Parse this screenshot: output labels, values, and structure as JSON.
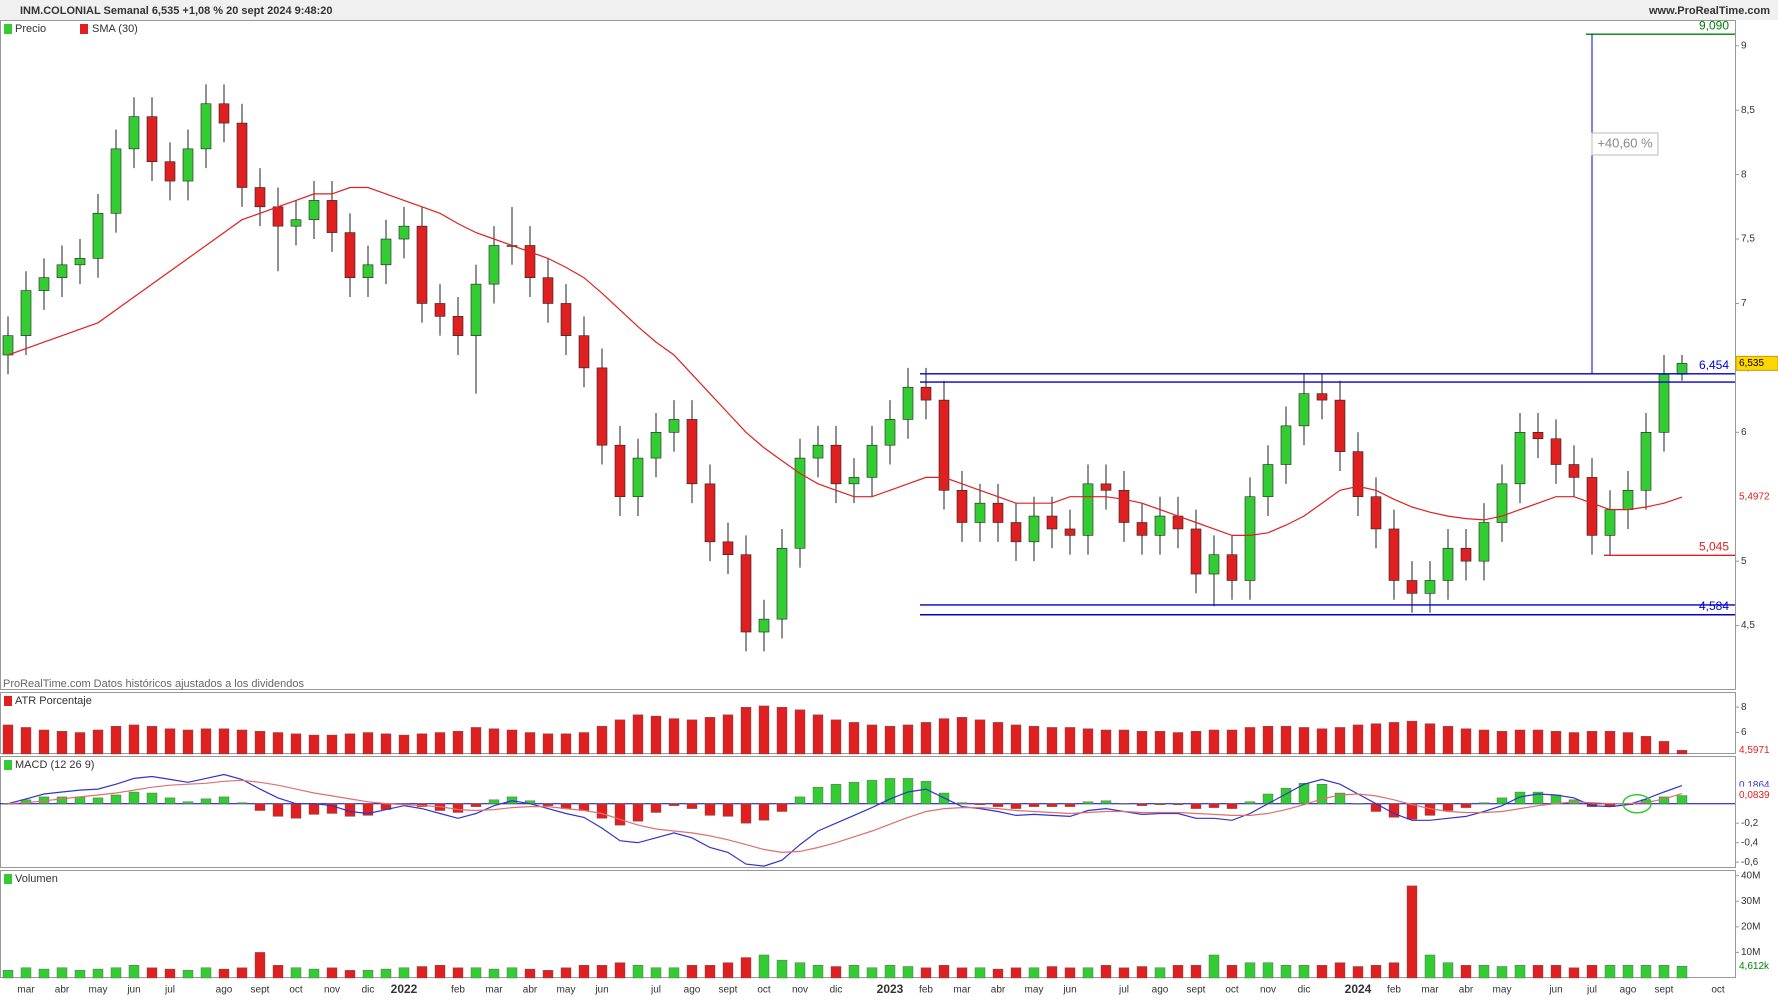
{
  "header": {
    "title": "INM.COLONIAL Semanal 6,535 +1,08 % 20 sept 2024 9:48:20",
    "site": "www.ProRealTime.com"
  },
  "footer": "ProRealTime.com Datos históricos ajustados a los dividendos",
  "chart_data": [
    {
      "type": "candlestick",
      "name": "Precio",
      "up_color": "#33cc33",
      "down_color": "#e02020",
      "open": [
        6.6,
        6.75,
        7.1,
        7.2,
        7.3,
        7.35,
        7.7,
        8.2,
        8.45,
        8.1,
        7.95,
        8.2,
        8.55,
        8.4,
        7.9,
        7.75,
        7.6,
        7.65,
        7.8,
        7.55,
        7.2,
        7.3,
        7.5,
        7.6,
        7.0,
        6.9,
        6.75,
        7.15,
        7.45,
        7.45,
        7.2,
        7.0,
        6.75,
        6.5,
        5.9,
        5.5,
        5.8,
        6.0,
        6.1,
        5.6,
        5.15,
        5.05,
        4.45,
        4.55,
        5.1,
        5.8,
        5.9,
        5.6,
        5.65,
        5.9,
        6.1,
        6.35,
        6.25,
        5.55,
        5.3,
        5.45,
        5.3,
        5.15,
        5.35,
        5.25,
        5.2,
        5.6,
        5.55,
        5.3,
        5.2,
        5.35,
        5.25,
        4.9,
        5.05,
        4.85,
        5.5,
        5.75,
        6.05,
        6.3,
        6.25,
        5.85,
        5.5,
        5.25,
        4.85,
        4.75,
        4.85,
        5.1,
        5.0,
        5.3,
        5.6,
        6.0,
        5.95,
        5.75,
        5.65,
        5.2,
        5.4,
        5.55,
        6.0,
        6.45,
        null,
        null
      ],
      "high": [
        6.9,
        7.25,
        7.35,
        7.45,
        7.5,
        7.85,
        8.35,
        8.6,
        8.6,
        8.25,
        8.35,
        8.7,
        8.7,
        8.55,
        8.05,
        7.9,
        7.8,
        7.95,
        7.95,
        7.7,
        7.45,
        7.65,
        7.75,
        7.75,
        7.15,
        7.05,
        7.3,
        7.6,
        7.75,
        7.6,
        7.35,
        7.15,
        6.9,
        6.65,
        6.05,
        5.95,
        6.15,
        6.25,
        6.25,
        5.75,
        5.3,
        5.2,
        4.7,
        5.25,
        5.95,
        6.05,
        6.05,
        5.8,
        6.05,
        6.25,
        6.5,
        6.5,
        6.4,
        5.7,
        5.6,
        5.6,
        5.45,
        5.5,
        5.5,
        5.4,
        5.75,
        5.75,
        5.7,
        5.45,
        5.5,
        5.5,
        5.4,
        5.2,
        5.2,
        5.65,
        5.9,
        6.2,
        6.45,
        6.45,
        6.4,
        6.0,
        5.65,
        5.4,
        5.0,
        5.0,
        5.25,
        5.25,
        5.45,
        5.75,
        6.15,
        6.15,
        6.1,
        5.9,
        5.8,
        5.55,
        5.7,
        6.15,
        6.6,
        6.6,
        null,
        null
      ],
      "low": [
        6.45,
        6.6,
        6.95,
        7.05,
        7.15,
        7.2,
        7.55,
        8.05,
        7.95,
        7.8,
        7.8,
        8.05,
        8.25,
        7.75,
        7.6,
        7.25,
        7.45,
        7.5,
        7.4,
        7.05,
        7.05,
        7.15,
        7.35,
        6.85,
        6.75,
        6.6,
        6.3,
        7.0,
        7.3,
        7.05,
        6.85,
        6.6,
        6.35,
        5.75,
        5.35,
        5.35,
        5.65,
        5.85,
        5.45,
        5.0,
        4.9,
        4.3,
        4.3,
        4.4,
        4.95,
        5.65,
        5.45,
        5.45,
        5.5,
        5.75,
        5.95,
        6.1,
        5.4,
        5.15,
        5.15,
        5.15,
        5.0,
        5.0,
        5.1,
        5.05,
        5.05,
        5.4,
        5.15,
        5.05,
        5.05,
        5.1,
        4.75,
        4.65,
        4.7,
        4.7,
        5.35,
        5.6,
        5.9,
        6.1,
        5.7,
        5.35,
        5.1,
        4.7,
        4.6,
        4.6,
        4.7,
        4.85,
        4.85,
        5.15,
        5.45,
        5.8,
        5.6,
        5.5,
        5.05,
        5.05,
        5.25,
        5.4,
        5.85,
        6.4,
        null,
        null
      ],
      "close": [
        6.75,
        7.1,
        7.2,
        7.3,
        7.35,
        7.7,
        8.2,
        8.45,
        8.1,
        7.95,
        8.2,
        8.55,
        8.4,
        7.9,
        7.75,
        7.6,
        7.65,
        7.8,
        7.55,
        7.2,
        7.3,
        7.5,
        7.6,
        7.0,
        6.9,
        6.75,
        7.15,
        7.45,
        7.45,
        7.2,
        7.0,
        6.75,
        6.5,
        5.9,
        5.5,
        5.8,
        6.0,
        6.1,
        5.6,
        5.15,
        5.05,
        4.45,
        4.55,
        5.1,
        5.8,
        5.9,
        5.6,
        5.65,
        5.9,
        6.1,
        6.35,
        6.25,
        5.55,
        5.3,
        5.45,
        5.3,
        5.15,
        5.35,
        5.25,
        5.2,
        5.6,
        5.55,
        5.3,
        5.2,
        5.35,
        5.25,
        4.9,
        5.05,
        4.85,
        5.5,
        5.75,
        6.05,
        6.3,
        6.25,
        5.85,
        5.5,
        5.25,
        4.85,
        4.75,
        4.85,
        5.1,
        5.0,
        5.3,
        5.6,
        6.0,
        5.95,
        5.75,
        5.65,
        5.2,
        5.4,
        5.55,
        6.0,
        6.45,
        6.535,
        null,
        null
      ],
      "last_label": "6,535",
      "series": [
        {
          "name": "SMA (30)",
          "color": "#e02020",
          "last_label": "5,4972",
          "values": [
            6.6,
            6.65,
            6.7,
            6.75,
            6.8,
            6.85,
            6.95,
            7.05,
            7.15,
            7.25,
            7.35,
            7.45,
            7.55,
            7.65,
            7.7,
            7.75,
            7.8,
            7.85,
            7.85,
            7.9,
            7.9,
            7.85,
            7.8,
            7.75,
            7.7,
            7.62,
            7.55,
            7.5,
            7.45,
            7.4,
            7.35,
            7.28,
            7.2,
            7.08,
            6.95,
            6.82,
            6.7,
            6.6,
            6.45,
            6.3,
            6.15,
            6.0,
            5.88,
            5.78,
            5.68,
            5.6,
            5.55,
            5.5,
            5.5,
            5.55,
            5.6,
            5.65,
            5.65,
            5.6,
            5.55,
            5.5,
            5.45,
            5.45,
            5.45,
            5.5,
            5.5,
            5.5,
            5.48,
            5.45,
            5.4,
            5.35,
            5.3,
            5.25,
            5.2,
            5.2,
            5.22,
            5.28,
            5.35,
            5.45,
            5.55,
            5.58,
            5.55,
            5.48,
            5.42,
            5.38,
            5.35,
            5.33,
            5.32,
            5.35,
            5.4,
            5.45,
            5.5,
            5.5,
            5.45,
            5.4,
            5.4,
            5.42,
            5.45,
            5.4972,
            null,
            null
          ]
        }
      ],
      "levels": [
        {
          "value": 6.454,
          "label": "6,454",
          "color": "#0000cc"
        },
        {
          "value": 6.39,
          "color": "#0000cc"
        },
        {
          "value": 4.66,
          "color": "#0000cc"
        },
        {
          "value": 4.584,
          "label": "4,584",
          "color": "#0000cc"
        },
        {
          "value": 5.045,
          "label": "5,045",
          "color": "#e02020"
        },
        {
          "value": 9.09,
          "label": "9,090",
          "color": "#008000"
        }
      ],
      "annotation": "+40,60 %",
      "ylim": [
        4.0,
        9.2
      ],
      "yticks": [
        {
          "value": 4.5,
          "label": "4,5"
        },
        5,
        {
          "value": 5.5,
          "label": "5,5"
        },
        6,
        {
          "value": 6.5,
          "label": "6,5"
        },
        7,
        {
          "value": 7.5,
          "label": "7,5"
        },
        8,
        {
          "value": 8.5,
          "label": "8,5"
        },
        9
      ]
    },
    {
      "type": "bar",
      "name": "ATR Porcentaje",
      "color": "#e02020",
      "last_label": "4,5971",
      "values": [
        6.6,
        6.4,
        6.2,
        6.1,
        6.0,
        6.2,
        6.5,
        6.6,
        6.5,
        6.3,
        6.2,
        6.3,
        6.3,
        6.2,
        6.1,
        6.0,
        5.9,
        5.8,
        5.8,
        5.9,
        6.0,
        5.9,
        5.8,
        5.9,
        6.0,
        6.1,
        6.4,
        6.3,
        6.2,
        6.0,
        5.9,
        5.9,
        6.0,
        6.5,
        7.0,
        7.4,
        7.3,
        7.1,
        7.0,
        7.2,
        7.4,
        8.0,
        8.1,
        8.0,
        7.8,
        7.4,
        7.0,
        6.8,
        6.6,
        6.5,
        6.6,
        6.8,
        7.1,
        7.2,
        7.0,
        6.8,
        6.6,
        6.5,
        6.4,
        6.4,
        6.3,
        6.2,
        6.2,
        6.1,
        6.1,
        6.0,
        6.1,
        6.2,
        6.2,
        6.4,
        6.5,
        6.5,
        6.4,
        6.3,
        6.4,
        6.6,
        6.7,
        6.8,
        6.9,
        6.7,
        6.5,
        6.3,
        6.2,
        6.1,
        6.2,
        6.2,
        6.1,
        6.0,
        6.1,
        6.1,
        6.0,
        5.7,
        5.3,
        4.5971,
        null,
        null
      ],
      "ylim": [
        4.3,
        9.2
      ],
      "yticks": [
        6,
        8
      ]
    },
    {
      "type": "macd",
      "name": "MACD (12 26 9)",
      "series": [
        {
          "color": "#3333cc",
          "last_label": "0,1864",
          "values": [
            0.0,
            0.05,
            0.1,
            0.12,
            0.14,
            0.15,
            0.2,
            0.26,
            0.28,
            0.25,
            0.22,
            0.26,
            0.3,
            0.25,
            0.15,
            0.06,
            0.0,
            0.0,
            -0.02,
            -0.08,
            -0.1,
            -0.06,
            -0.02,
            -0.05,
            -0.1,
            -0.15,
            -0.1,
            -0.02,
            0.03,
            0.0,
            -0.05,
            -0.1,
            -0.14,
            -0.25,
            -0.38,
            -0.4,
            -0.35,
            -0.3,
            -0.35,
            -0.45,
            -0.5,
            -0.62,
            -0.64,
            -0.58,
            -0.42,
            -0.28,
            -0.2,
            -0.12,
            -0.04,
            0.05,
            0.12,
            0.15,
            0.06,
            -0.03,
            -0.05,
            -0.08,
            -0.12,
            -0.11,
            -0.12,
            -0.13,
            -0.07,
            -0.05,
            -0.08,
            -0.11,
            -0.1,
            -0.1,
            -0.15,
            -0.15,
            -0.17,
            -0.1,
            0.0,
            0.1,
            0.2,
            0.25,
            0.2,
            0.1,
            0.0,
            -0.1,
            -0.17,
            -0.17,
            -0.15,
            -0.13,
            -0.08,
            -0.02,
            0.07,
            0.1,
            0.09,
            0.06,
            -0.02,
            -0.03,
            -0.01,
            0.05,
            0.12,
            0.1864,
            null,
            null
          ]
        },
        {
          "color": "#e07070",
          "last_label": "0,1035",
          "values": [
            0.0,
            0.01,
            0.03,
            0.05,
            0.07,
            0.09,
            0.11,
            0.14,
            0.17,
            0.19,
            0.2,
            0.21,
            0.23,
            0.24,
            0.22,
            0.19,
            0.15,
            0.11,
            0.08,
            0.05,
            0.02,
            0.0,
            -0.01,
            -0.02,
            -0.03,
            -0.06,
            -0.07,
            -0.06,
            -0.04,
            -0.03,
            -0.03,
            -0.05,
            -0.07,
            -0.1,
            -0.16,
            -0.22,
            -0.26,
            -0.28,
            -0.3,
            -0.33,
            -0.37,
            -0.42,
            -0.47,
            -0.5,
            -0.49,
            -0.45,
            -0.4,
            -0.34,
            -0.28,
            -0.21,
            -0.14,
            -0.08,
            -0.05,
            -0.04,
            -0.04,
            -0.05,
            -0.07,
            -0.08,
            -0.09,
            -0.1,
            -0.09,
            -0.08,
            -0.08,
            -0.09,
            -0.09,
            -0.09,
            -0.1,
            -0.11,
            -0.12,
            -0.12,
            -0.1,
            -0.06,
            -0.01,
            0.05,
            0.09,
            0.1,
            0.08,
            0.04,
            -0.01,
            -0.05,
            -0.08,
            -0.09,
            -0.09,
            -0.08,
            -0.05,
            -0.02,
            0.0,
            0.02,
            0.01,
            0.0,
            0.0,
            0.01,
            0.05,
            0.1035,
            null,
            null
          ]
        }
      ],
      "histogram": {
        "up_color": "#33cc33",
        "down_color": "#e02020",
        "last_label": "0,0839",
        "values": [
          0,
          0.04,
          0.07,
          0.07,
          0.07,
          0.06,
          0.09,
          0.12,
          0.11,
          0.06,
          0.02,
          0.05,
          0.07,
          0.01,
          -0.07,
          -0.13,
          -0.15,
          -0.11,
          -0.1,
          -0.13,
          -0.12,
          -0.06,
          -0.01,
          -0.03,
          -0.07,
          -0.09,
          -0.03,
          0.04,
          0.07,
          0.03,
          -0.02,
          -0.05,
          -0.07,
          -0.15,
          -0.22,
          -0.18,
          -0.09,
          -0.02,
          -0.05,
          -0.12,
          -0.13,
          -0.2,
          -0.17,
          -0.08,
          0.07,
          0.17,
          0.2,
          0.22,
          0.24,
          0.26,
          0.26,
          0.23,
          0.11,
          0.01,
          -0.01,
          -0.03,
          -0.05,
          -0.03,
          -0.03,
          -0.03,
          0.02,
          0.03,
          0.0,
          -0.02,
          -0.01,
          -0.01,
          -0.05,
          -0.04,
          -0.05,
          0.02,
          0.1,
          0.16,
          0.21,
          0.2,
          0.11,
          0.0,
          -0.08,
          -0.14,
          -0.16,
          -0.12,
          -0.07,
          -0.04,
          0.01,
          0.06,
          0.12,
          0.12,
          0.09,
          0.04,
          -0.03,
          -0.03,
          -0.01,
          0.04,
          0.07,
          0.0839,
          null,
          null
        ]
      },
      "ylim": [
        -0.66,
        0.49
      ],
      "yticks": [
        {
          "value": -0.2,
          "label": "-0,2"
        },
        {
          "value": -0.4,
          "label": "-0,4"
        },
        {
          "value": -0.6,
          "label": "-0,6"
        }
      ]
    },
    {
      "type": "bar",
      "name": "Volumen",
      "last_label": "4,612k",
      "categories": [
        null,
        "mar",
        null,
        "abr",
        null,
        "may",
        null,
        "jun",
        null,
        "jul",
        null,
        null,
        "ago",
        null,
        "sept",
        null,
        "oct",
        null,
        "nov",
        null,
        "dic",
        null,
        "2022",
        null,
        null,
        "feb",
        null,
        "mar",
        null,
        "abr",
        null,
        "may",
        null,
        "jun",
        null,
        null,
        "jul",
        null,
        "ago",
        null,
        "sept",
        null,
        "oct",
        null,
        "nov",
        null,
        "dic",
        null,
        null,
        "2023",
        null,
        "feb",
        null,
        "mar",
        null,
        "abr",
        null,
        "may",
        null,
        "jun",
        null,
        null,
        "jul",
        null,
        "ago",
        null,
        "sept",
        null,
        "oct",
        null,
        "nov",
        null,
        "dic",
        null,
        null,
        "2024",
        null,
        "feb",
        null,
        "mar",
        null,
        "abr",
        null,
        "may",
        null,
        null,
        "jun",
        null,
        "jul",
        null,
        "ago",
        null,
        "sept",
        null,
        null,
        "oct"
      ],
      "values": [
        3,
        4,
        3.5,
        4,
        3,
        3.5,
        4,
        5,
        4,
        3.5,
        3,
        4,
        3.5,
        4,
        10,
        5,
        4,
        3.5,
        4,
        3,
        3,
        3.5,
        4,
        4.5,
        5,
        4,
        4,
        3.5,
        4,
        3.5,
        3,
        4,
        5,
        5,
        6,
        5,
        4,
        4,
        5,
        5,
        6,
        8,
        9,
        7,
        6,
        5,
        4.5,
        5,
        4,
        5,
        4.5,
        4,
        5,
        4,
        4,
        3.5,
        4,
        4,
        4.5,
        4,
        4,
        5,
        4,
        4.5,
        4,
        5,
        5,
        9,
        5,
        6,
        6,
        5,
        5,
        5,
        6,
        4.5,
        5,
        6,
        36,
        9,
        6,
        5,
        5,
        4.5,
        5,
        5,
        5,
        4,
        5,
        5,
        5,
        5,
        5,
        4.612,
        null,
        null
      ],
      "ylim": [
        0,
        42.2
      ],
      "yticks": [
        {
          "value": 10,
          "label": "10M"
        },
        {
          "value": 20,
          "label": "20M"
        },
        {
          "value": 30,
          "label": "30M"
        },
        {
          "value": 40,
          "label": "40M"
        }
      ]
    }
  ]
}
